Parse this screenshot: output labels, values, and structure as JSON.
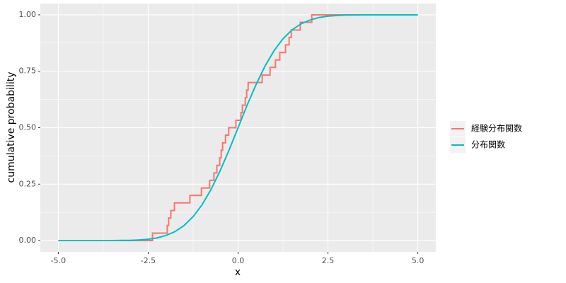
{
  "chart_data": {
    "type": "line",
    "x_label": "x",
    "y_label": "cumulative probability",
    "xlim": [
      -5.5,
      5.5
    ],
    "ylim": [
      -0.05,
      1.05
    ],
    "xticks": [
      {
        "value": -5,
        "label": "-5.0"
      },
      {
        "value": -2.5,
        "label": "-2.5"
      },
      {
        "value": 0,
        "label": "0.0"
      },
      {
        "value": 2.5,
        "label": "2.5"
      },
      {
        "value": 5,
        "label": "5.0"
      }
    ],
    "yticks": [
      {
        "value": 0,
        "label": "0.00"
      },
      {
        "value": 0.25,
        "label": "0.25"
      },
      {
        "value": 0.5,
        "label": "0.50"
      },
      {
        "value": 0.75,
        "label": "0.75"
      },
      {
        "value": 1,
        "label": "1.00"
      }
    ],
    "grid": true,
    "legend": "right",
    "series": [
      {
        "name": "経験分布関数",
        "color": "#f8766d",
        "drawstyle": "steps-post",
        "x": [
          -5,
          -2.38,
          -1.97,
          -1.93,
          -1.87,
          -1.77,
          -1.34,
          -1.02,
          -0.79,
          -0.67,
          -0.59,
          -0.51,
          -0.47,
          -0.43,
          -0.35,
          -0.26,
          -0.06,
          0.08,
          0.12,
          0.2,
          0.24,
          0.28,
          0.67,
          0.89,
          1.04,
          1.16,
          1.32,
          1.42,
          1.48,
          1.73,
          2.05,
          5
        ],
        "values": [
          0,
          0.033,
          0.067,
          0.1,
          0.133,
          0.167,
          0.2,
          0.233,
          0.267,
          0.3,
          0.333,
          0.367,
          0.4,
          0.433,
          0.467,
          0.5,
          0.533,
          0.567,
          0.6,
          0.633,
          0.667,
          0.7,
          0.733,
          0.767,
          0.8,
          0.833,
          0.867,
          0.9,
          0.933,
          0.967,
          1,
          1
        ]
      },
      {
        "name": "分布関数",
        "color": "#00bfc4",
        "x": [
          -5,
          -4.75,
          -4.5,
          -4.25,
          -4,
          -3.75,
          -3.5,
          -3.25,
          -3,
          -2.75,
          -2.5,
          -2.25,
          -2,
          -1.75,
          -1.5,
          -1.25,
          -1,
          -0.75,
          -0.5,
          -0.25,
          0,
          0.25,
          0.5,
          0.75,
          1,
          1.25,
          1.5,
          1.75,
          2,
          2.25,
          2.5,
          2.75,
          3,
          3.25,
          3.5,
          3.75,
          4,
          4.25,
          4.5,
          4.75,
          5
        ],
        "values": [
          0,
          0,
          0,
          0,
          0,
          0,
          0,
          0.001,
          0.001,
          0.003,
          0.006,
          0.012,
          0.023,
          0.04,
          0.067,
          0.106,
          0.159,
          0.227,
          0.309,
          0.401,
          0.5,
          0.599,
          0.691,
          0.773,
          0.841,
          0.894,
          0.933,
          0.96,
          0.977,
          0.988,
          0.994,
          0.997,
          0.999,
          0.999,
          1,
          1,
          1,
          1,
          1,
          1,
          1
        ]
      }
    ]
  }
}
